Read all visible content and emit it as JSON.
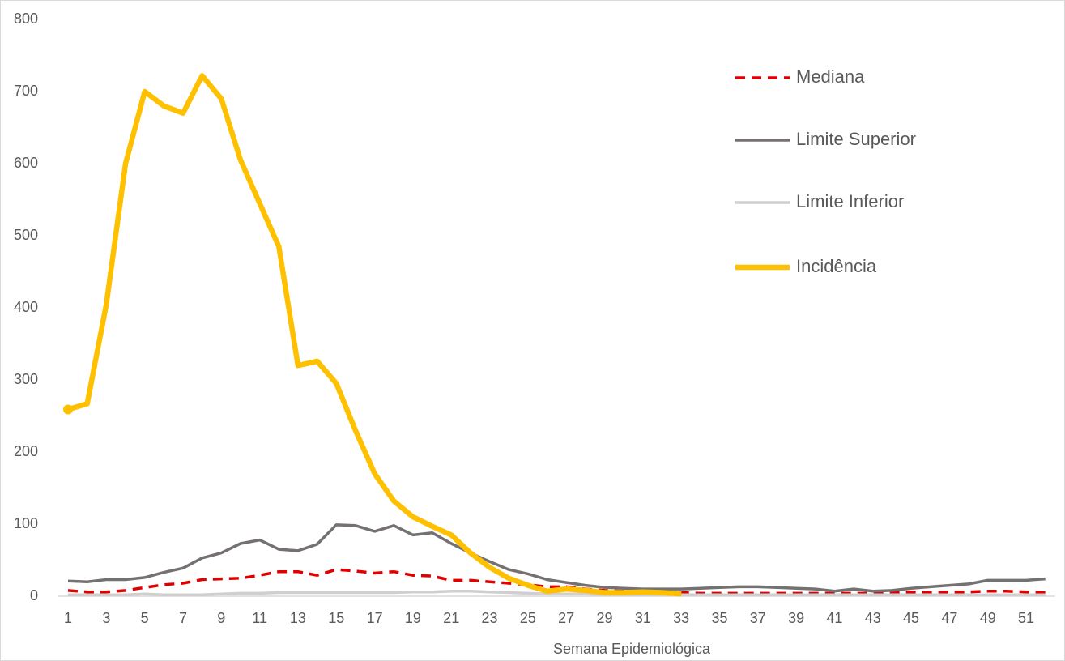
{
  "chart_data": {
    "type": "line",
    "x_label": "Semana Epidemiológica",
    "categories": [
      1,
      null,
      3,
      null,
      5,
      null,
      7,
      null,
      9,
      null,
      11,
      null,
      13,
      null,
      15,
      null,
      17,
      null,
      19,
      null,
      21,
      null,
      23,
      null,
      25,
      null,
      27,
      null,
      29,
      null,
      31,
      null,
      33,
      null,
      35,
      null,
      37,
      null,
      39,
      null,
      41,
      null,
      43,
      null,
      45,
      null,
      47,
      null,
      49,
      null,
      51,
      null
    ],
    "ylim": [
      0,
      800
    ],
    "yticks": [
      0,
      100,
      200,
      300,
      400,
      500,
      600,
      700,
      800
    ],
    "grid": false,
    "legend": "right",
    "series": [
      {
        "name": "Mediana",
        "color": "#e00000",
        "dashed": true,
        "width": 3.5,
        "values": [
          8,
          6,
          6,
          8,
          12,
          16,
          18,
          23,
          24,
          25,
          29,
          34,
          34,
          29,
          37,
          35,
          32,
          34,
          29,
          28,
          22,
          22,
          20,
          18,
          16,
          13,
          13,
          10,
          8,
          7,
          6,
          5,
          5,
          4,
          4,
          4,
          4,
          4,
          4,
          4,
          4,
          4,
          4,
          5,
          6,
          5,
          6,
          6,
          7,
          7,
          6,
          5
        ]
      },
      {
        "name": "Limite Superior",
        "color": "#767171",
        "dashed": false,
        "width": 3.5,
        "values": [
          21,
          20,
          23,
          23,
          26,
          33,
          39,
          53,
          60,
          73,
          78,
          65,
          63,
          72,
          99,
          98,
          90,
          98,
          85,
          88,
          73,
          60,
          48,
          37,
          31,
          23,
          19,
          15,
          12,
          11,
          10,
          10,
          10,
          11,
          12,
          13,
          13,
          12,
          11,
          10,
          7,
          10,
          7,
          8,
          11,
          13,
          15,
          17,
          22,
          22,
          22,
          24
        ]
      },
      {
        "name": "Limite Inferior",
        "color": "#d0cece",
        "dashed": false,
        "width": 3.5,
        "values": [
          2,
          2,
          2,
          2,
          3,
          2,
          2,
          2,
          3,
          4,
          4,
          5,
          5,
          5,
          5,
          5,
          5,
          5,
          6,
          6,
          7,
          7,
          6,
          5,
          4,
          3,
          3,
          3,
          2,
          2,
          2,
          2,
          2,
          2,
          2,
          2,
          2,
          2,
          2,
          2,
          2,
          2,
          2,
          2,
          2,
          2,
          2,
          2,
          2,
          2,
          2,
          2
        ]
      },
      {
        "name": "Incidência",
        "color": "#ffc000",
        "dashed": false,
        "width": 6.5,
        "first_marker": true,
        "values": [
          259,
          267,
          405,
          600,
          700,
          680,
          670,
          722,
          690,
          605,
          545,
          485,
          320,
          326,
          295,
          230,
          170,
          132,
          110,
          97,
          85,
          60,
          40,
          25,
          15,
          7,
          10,
          8,
          5,
          5,
          6,
          5,
          3,
          null,
          null,
          null,
          null,
          null,
          null,
          null,
          null,
          null,
          null,
          null,
          null,
          null,
          null,
          null,
          null,
          null,
          null,
          null
        ]
      }
    ]
  }
}
